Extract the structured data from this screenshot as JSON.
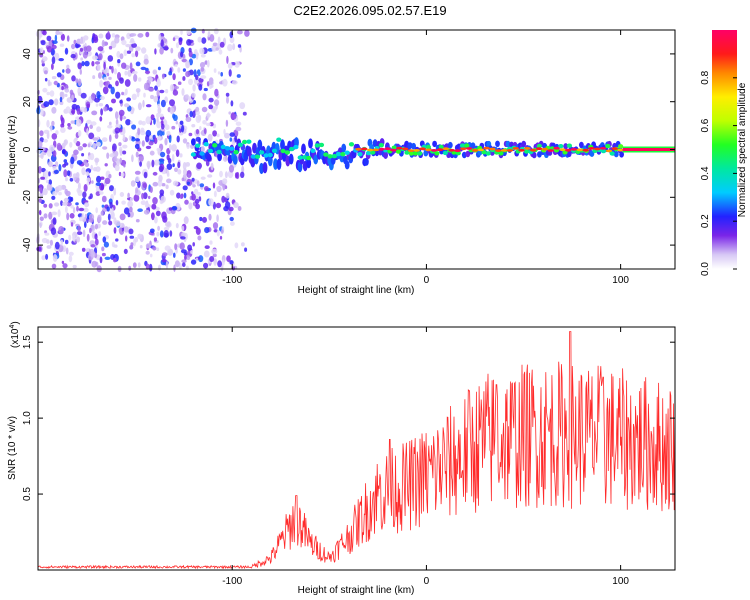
{
  "title": "C2E2.2026.095.02.57.E19",
  "chart_data": [
    {
      "type": "heatmap",
      "name": "spectrogram",
      "xlabel": "Height of straight line (km)",
      "ylabel": "Frequency (Hz)",
      "xlim": [
        -200,
        128
      ],
      "ylim": [
        -50,
        50
      ],
      "x_ticks": [
        -100,
        0,
        100
      ],
      "x_tick_labels": [
        "-100",
        "0",
        "100"
      ],
      "y_ticks": [
        -40,
        -20,
        0,
        20,
        40
      ],
      "y_tick_labels": [
        "-40",
        "-20",
        "0",
        "20",
        "40"
      ],
      "noise_region_x": [
        -200,
        -92
      ],
      "signal_track": {
        "x_start": -120,
        "x_end": 128,
        "center_frequency_hz": 0,
        "description_points": [
          {
            "x": -115,
            "half_width": 4
          },
          {
            "x": -80,
            "half_width": 8
          },
          {
            "x": -40,
            "half_width": 5
          },
          {
            "x": 0,
            "half_width": 3
          },
          {
            "x": 100,
            "half_width": 3
          }
        ]
      },
      "colorbar": {
        "label": "Normalized spectral amplitude",
        "range": [
          0,
          1
        ],
        "ticks": [
          0.0,
          0.2,
          0.4,
          0.6,
          0.8
        ],
        "tick_labels": [
          "0.0",
          "0.2",
          "0.4",
          "0.6",
          "0.8"
        ]
      }
    },
    {
      "type": "line",
      "name": "snr",
      "xlabel": "Height of straight line (km)",
      "ylabel": "SNR (10 * v/v)",
      "y_multiplier_label": "(x10",
      "y_multiplier_exp": "4",
      "xlim": [
        -200,
        128
      ],
      "ylim": [
        0,
        1.6
      ],
      "x_ticks": [
        -100,
        0,
        100
      ],
      "x_tick_labels": [
        "-100",
        "0",
        "100"
      ],
      "y_ticks": [
        0.5,
        1.0,
        1.5
      ],
      "y_tick_labels": [
        "0.5",
        "1.0",
        "1.5"
      ],
      "color": "#ff2a2a",
      "envelope": [
        {
          "x": -200,
          "y": 0.02
        },
        {
          "x": -90,
          "y": 0.02
        },
        {
          "x": -80,
          "y": 0.08
        },
        {
          "x": -67,
          "y": 0.35
        },
        {
          "x": -60,
          "y": 0.18
        },
        {
          "x": -50,
          "y": 0.08
        },
        {
          "x": -40,
          "y": 0.22
        },
        {
          "x": -25,
          "y": 0.5
        },
        {
          "x": -10,
          "y": 0.55
        },
        {
          "x": 0,
          "y": 0.62
        },
        {
          "x": 15,
          "y": 0.72
        },
        {
          "x": 30,
          "y": 0.85
        },
        {
          "x": 60,
          "y": 0.9
        },
        {
          "x": 90,
          "y": 0.88
        },
        {
          "x": 128,
          "y": 0.8
        }
      ],
      "peaks": [
        {
          "x": -67,
          "y": 0.49
        },
        {
          "x": -19,
          "y": 0.86
        },
        {
          "x": 22,
          "y": 1.18
        },
        {
          "x": 36,
          "y": 1.22
        },
        {
          "x": 74,
          "y": 1.57
        },
        {
          "x": 91,
          "y": 1.27
        }
      ]
    }
  ]
}
